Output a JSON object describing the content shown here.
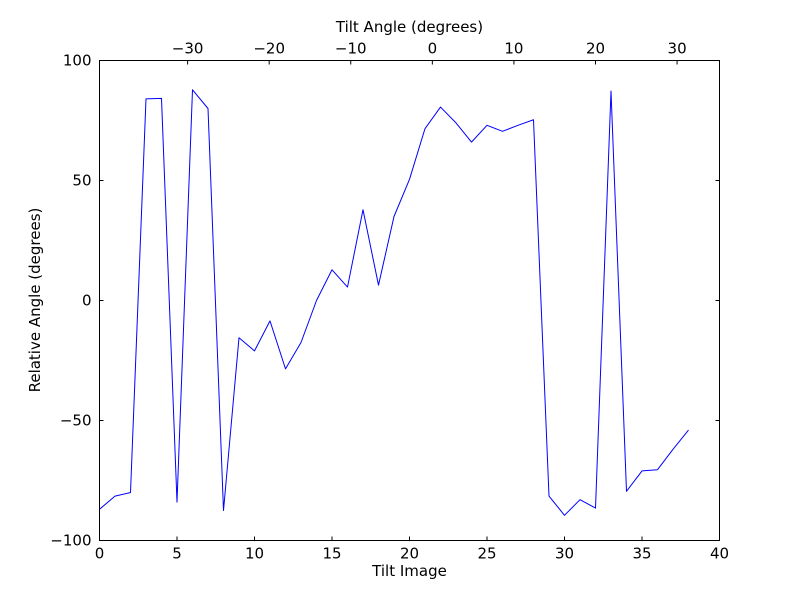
{
  "chart_data": {
    "type": "line",
    "title": "",
    "xlabel": "Tilt Image",
    "ylabel": "Relative Angle (degrees)",
    "top_xlabel": "Tilt Angle (degrees)",
    "xlim": [
      0,
      40
    ],
    "ylim": [
      -100,
      100
    ],
    "top_xlim": [
      -40.8,
      35.2
    ],
    "x_ticks": [
      0,
      5,
      10,
      15,
      20,
      25,
      30,
      35,
      40
    ],
    "x_tick_labels": [
      "0",
      "5",
      "10",
      "15",
      "20",
      "25",
      "30",
      "35",
      "40"
    ],
    "y_ticks": [
      -100,
      -50,
      0,
      50,
      100
    ],
    "y_tick_labels": [
      "−100",
      "−50",
      "0",
      "50",
      "100"
    ],
    "top_x_ticks": [
      -30,
      -20,
      -10,
      0,
      10,
      20,
      30
    ],
    "top_x_tick_labels": [
      "−30",
      "−20",
      "−10",
      "0",
      "10",
      "20",
      "30"
    ],
    "grid": false,
    "series": [
      {
        "color": "#0000ff",
        "x": [
          0,
          1,
          2,
          3,
          4,
          5,
          6,
          7,
          8,
          9,
          10,
          11,
          12,
          13,
          14,
          15,
          16,
          17,
          18,
          19,
          20,
          21,
          22,
          23,
          24,
          25,
          26,
          27,
          28,
          29,
          30,
          31,
          32,
          33,
          34,
          35,
          36,
          37,
          38
        ],
        "y": [
          -87,
          -81.5,
          -80,
          84,
          84.2,
          -84,
          87.8,
          80,
          -87.5,
          -15.5,
          -21,
          -8.5,
          -28.5,
          -17.5,
          0,
          12.8,
          5.6,
          37.8,
          6.4,
          35,
          50.5,
          71.6,
          80.6,
          74,
          66,
          73,
          70.5,
          73,
          75.3,
          -81.5,
          -89.5,
          -83,
          -86.5,
          87.3,
          -79.5,
          -71,
          -70.5,
          -62,
          -54
        ]
      }
    ]
  }
}
